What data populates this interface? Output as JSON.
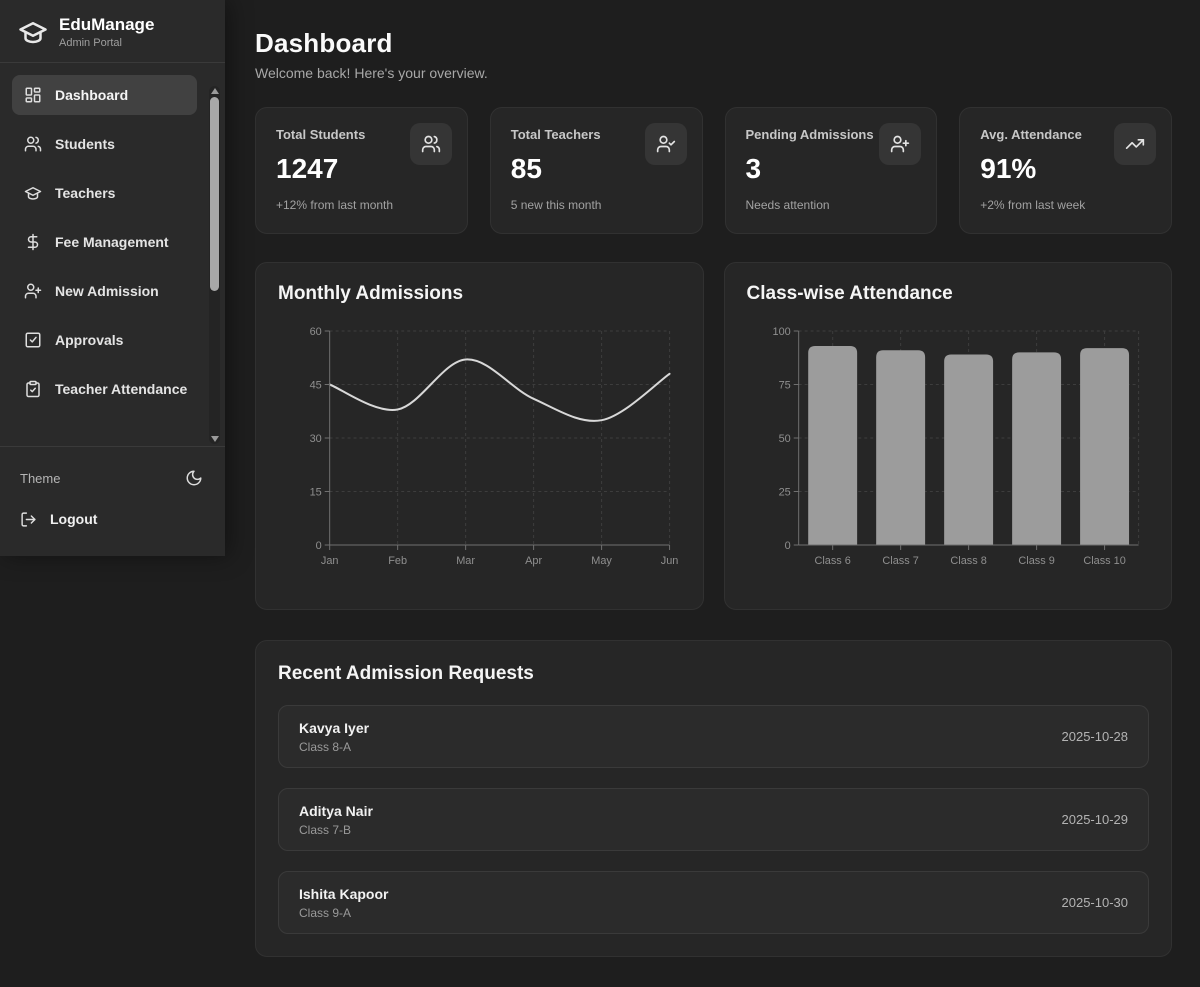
{
  "app": {
    "name": "EduManage",
    "subtitle": "Admin Portal",
    "logo_icon": "graduation-cap-icon"
  },
  "sidebar": {
    "items": [
      {
        "label": "Dashboard",
        "icon": "layout-dashboard-icon",
        "active": true
      },
      {
        "label": "Students",
        "icon": "users-icon",
        "active": false
      },
      {
        "label": "Teachers",
        "icon": "graduation-cap-icon",
        "active": false
      },
      {
        "label": "Fee Management",
        "icon": "dollar-sign-icon",
        "active": false
      },
      {
        "label": "New Admission",
        "icon": "user-plus-icon",
        "active": false
      },
      {
        "label": "Approvals",
        "icon": "square-check-icon",
        "active": false
      },
      {
        "label": "Teacher Attendance",
        "icon": "clipboard-check-icon",
        "active": false
      }
    ],
    "theme_label": "Theme",
    "theme_icon": "moon-icon",
    "logout_label": "Logout",
    "logout_icon": "logout-icon"
  },
  "header": {
    "title": "Dashboard",
    "subtitle": "Welcome back! Here's your overview."
  },
  "stats": [
    {
      "label": "Total Students",
      "value": "1247",
      "note": "+12% from last month",
      "icon": "users-icon"
    },
    {
      "label": "Total Teachers",
      "value": "85",
      "note": "5 new this month",
      "icon": "user-check-icon"
    },
    {
      "label": "Pending Admissions",
      "value": "3",
      "note": "Needs attention",
      "icon": "user-plus-icon"
    },
    {
      "label": "Avg. Attendance",
      "value": "91%",
      "note": "+2% from last week",
      "icon": "trending-up-icon"
    }
  ],
  "chart_data": [
    {
      "type": "line",
      "title": "Monthly Admissions",
      "x": [
        "Jan",
        "Feb",
        "Mar",
        "Apr",
        "May",
        "Jun"
      ],
      "values": [
        45,
        38,
        52,
        41,
        35,
        48
      ],
      "ylim": [
        0,
        60
      ],
      "yticks": [
        0,
        15,
        30,
        45,
        60
      ],
      "grid": "dashed",
      "legend": "none",
      "line_color": "#d8d8d8",
      "grid_color": "#3d3d3d",
      "axis_color": "#707070",
      "tick_color": "#8f8f8f"
    },
    {
      "type": "bar",
      "title": "Class-wise Attendance",
      "categories": [
        "Class 6",
        "Class 7",
        "Class 8",
        "Class 9",
        "Class 10"
      ],
      "values": [
        93,
        91,
        89,
        90,
        92
      ],
      "ylim": [
        0,
        100
      ],
      "yticks": [
        0,
        25,
        50,
        75,
        100
      ],
      "grid": "dashed",
      "legend": "none",
      "bar_color": "#9c9c9c",
      "grid_color": "#3d3d3d",
      "axis_color": "#707070",
      "tick_color": "#8f8f8f"
    }
  ],
  "recent": {
    "title": "Recent Admission Requests",
    "requests": [
      {
        "name": "Kavya Iyer",
        "class": "Class 8-A",
        "date": "2025-10-28"
      },
      {
        "name": "Aditya Nair",
        "class": "Class 7-B",
        "date": "2025-10-29"
      },
      {
        "name": "Ishita Kapoor",
        "class": "Class 9-A",
        "date": "2025-10-30"
      }
    ]
  },
  "colors": {
    "page_bg": "#1e1e1e",
    "sidebar_bg": "#2a2a2a",
    "card_bg": "#262626",
    "card_border": "#313131",
    "active_nav_bg": "#414141",
    "text_primary": "#ffffff",
    "text_secondary": "#a2a2a2"
  }
}
